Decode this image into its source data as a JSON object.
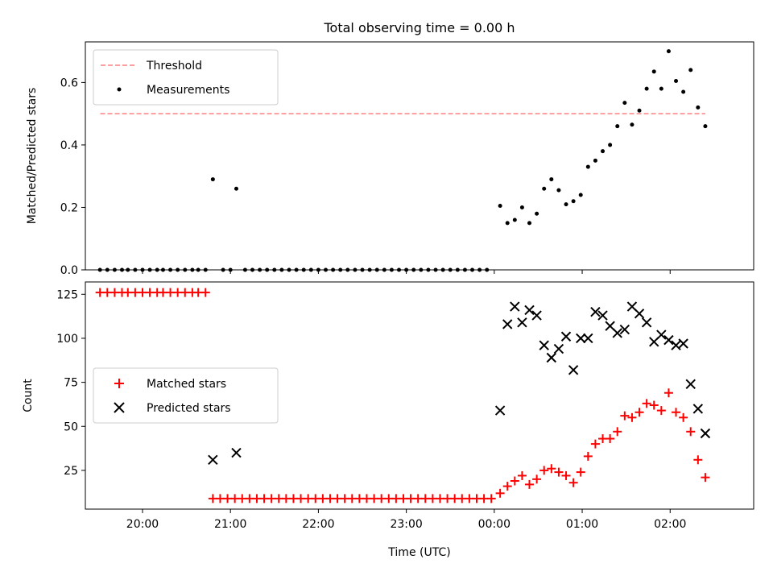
{
  "figure": {
    "title": "Total observing time = 0.00 h",
    "xlabel": "Time (UTC)"
  },
  "chart_data": [
    {
      "type": "scatter",
      "ylabel": "Matched/Predicted stars",
      "ylim": [
        0,
        0.73
      ],
      "yticks": [
        0.0,
        0.2,
        0.4,
        0.6
      ],
      "ytick_labels": [
        "0.0",
        "0.2",
        "0.4",
        "0.6"
      ],
      "xlim_hours": [
        19.35,
        26.95
      ],
      "legend_position": "upper-left",
      "threshold": {
        "name": "Threshold",
        "value": 0.5,
        "x_start": 19.52,
        "x_end": 26.4,
        "color": "#ff7f7f"
      },
      "series": [
        {
          "name": "Measurements",
          "marker": "dot",
          "color": "#000000",
          "points": [
            [
              "19:31",
              0
            ],
            [
              "19:36",
              0
            ],
            [
              "19:41",
              0
            ],
            [
              "19:46",
              0
            ],
            [
              "19:50",
              0
            ],
            [
              "19:55",
              0
            ],
            [
              "20:00",
              0
            ],
            [
              "20:05",
              0
            ],
            [
              "20:10",
              0
            ],
            [
              "20:14",
              0
            ],
            [
              "20:19",
              0
            ],
            [
              "20:24",
              0
            ],
            [
              "20:29",
              0
            ],
            [
              "20:34",
              0
            ],
            [
              "20:38",
              0
            ],
            [
              "20:43",
              0
            ],
            [
              "20:48",
              0.29
            ],
            [
              "20:55",
              0
            ],
            [
              "21:00",
              0
            ],
            [
              "21:04",
              0.26
            ],
            [
              "21:10",
              0
            ],
            [
              "21:15",
              0
            ],
            [
              "21:20",
              0
            ],
            [
              "21:25",
              0
            ],
            [
              "21:30",
              0
            ],
            [
              "21:35",
              0
            ],
            [
              "21:40",
              0
            ],
            [
              "21:45",
              0
            ],
            [
              "21:50",
              0
            ],
            [
              "21:55",
              0
            ],
            [
              "22:00",
              0
            ],
            [
              "22:05",
              0
            ],
            [
              "22:10",
              0
            ],
            [
              "22:15",
              0
            ],
            [
              "22:20",
              0
            ],
            [
              "22:25",
              0
            ],
            [
              "22:30",
              0
            ],
            [
              "22:35",
              0
            ],
            [
              "22:40",
              0
            ],
            [
              "22:45",
              0
            ],
            [
              "22:50",
              0
            ],
            [
              "22:55",
              0
            ],
            [
              "23:00",
              0
            ],
            [
              "23:05",
              0
            ],
            [
              "23:10",
              0
            ],
            [
              "23:15",
              0
            ],
            [
              "23:20",
              0
            ],
            [
              "23:25",
              0
            ],
            [
              "23:30",
              0
            ],
            [
              "23:35",
              0
            ],
            [
              "23:40",
              0
            ],
            [
              "23:45",
              0
            ],
            [
              "23:50",
              0
            ],
            [
              "23:55",
              0
            ],
            [
              "00:04",
              0.205
            ],
            [
              "00:09",
              0.15
            ],
            [
              "00:14",
              0.16
            ],
            [
              "00:19",
              0.2
            ],
            [
              "00:24",
              0.15
            ],
            [
              "00:29",
              0.18
            ],
            [
              "00:34",
              0.26
            ],
            [
              "00:39",
              0.29
            ],
            [
              "00:44",
              0.255
            ],
            [
              "00:49",
              0.21
            ],
            [
              "00:54",
              0.22
            ],
            [
              "00:59",
              0.24
            ],
            [
              "01:04",
              0.33
            ],
            [
              "01:09",
              0.35
            ],
            [
              "01:14",
              0.38
            ],
            [
              "01:19",
              0.4
            ],
            [
              "01:24",
              0.46
            ],
            [
              "01:29",
              0.535
            ],
            [
              "01:34",
              0.465
            ],
            [
              "01:39",
              0.51
            ],
            [
              "01:44",
              0.58
            ],
            [
              "01:49",
              0.635
            ],
            [
              "01:54",
              0.58
            ],
            [
              "01:59",
              0.7
            ],
            [
              "02:04",
              0.605
            ],
            [
              "02:09",
              0.57
            ],
            [
              "02:14",
              0.64
            ],
            [
              "02:19",
              0.52
            ],
            [
              "02:24",
              0.46
            ]
          ]
        }
      ]
    },
    {
      "type": "scatter",
      "ylabel": "Count",
      "ylim": [
        3,
        132
      ],
      "yticks": [
        25,
        50,
        75,
        100,
        125
      ],
      "ytick_labels": [
        "25",
        "50",
        "75",
        "100",
        "125"
      ],
      "xlim_hours": [
        19.35,
        26.95
      ],
      "xticks_hours": [
        20,
        21,
        22,
        23,
        24,
        25,
        26
      ],
      "xtick_labels": [
        "20:00",
        "21:00",
        "22:00",
        "23:00",
        "00:00",
        "01:00",
        "02:00"
      ],
      "legend_position": "center-left",
      "series": [
        {
          "name": "Matched stars",
          "marker": "plus",
          "color": "#ff0000",
          "points": [
            [
              "19:31",
              126
            ],
            [
              "19:36",
              126
            ],
            [
              "19:41",
              126
            ],
            [
              "19:46",
              126
            ],
            [
              "19:50",
              126
            ],
            [
              "19:55",
              126
            ],
            [
              "20:00",
              126
            ],
            [
              "20:05",
              126
            ],
            [
              "20:10",
              126
            ],
            [
              "20:14",
              126
            ],
            [
              "20:19",
              126
            ],
            [
              "20:24",
              126
            ],
            [
              "20:29",
              126
            ],
            [
              "20:34",
              126
            ],
            [
              "20:38",
              126
            ],
            [
              "20:43",
              126
            ],
            [
              "20:48",
              9
            ],
            [
              "20:53",
              9
            ],
            [
              "20:58",
              9
            ],
            [
              "21:03",
              9
            ],
            [
              "21:08",
              9
            ],
            [
              "21:13",
              9
            ],
            [
              "21:18",
              9
            ],
            [
              "21:23",
              9
            ],
            [
              "21:28",
              9
            ],
            [
              "21:33",
              9
            ],
            [
              "21:38",
              9
            ],
            [
              "21:43",
              9
            ],
            [
              "21:48",
              9
            ],
            [
              "21:53",
              9
            ],
            [
              "21:58",
              9
            ],
            [
              "22:03",
              9
            ],
            [
              "22:08",
              9
            ],
            [
              "22:13",
              9
            ],
            [
              "22:18",
              9
            ],
            [
              "22:23",
              9
            ],
            [
              "22:28",
              9
            ],
            [
              "22:33",
              9
            ],
            [
              "22:38",
              9
            ],
            [
              "22:43",
              9
            ],
            [
              "22:48",
              9
            ],
            [
              "22:53",
              9
            ],
            [
              "22:58",
              9
            ],
            [
              "23:03",
              9
            ],
            [
              "23:08",
              9
            ],
            [
              "23:13",
              9
            ],
            [
              "23:18",
              9
            ],
            [
              "23:23",
              9
            ],
            [
              "23:28",
              9
            ],
            [
              "23:33",
              9
            ],
            [
              "23:38",
              9
            ],
            [
              "23:43",
              9
            ],
            [
              "23:48",
              9
            ],
            [
              "23:53",
              9
            ],
            [
              "23:58",
              9
            ],
            [
              "00:04",
              12
            ],
            [
              "00:09",
              16
            ],
            [
              "00:14",
              19
            ],
            [
              "00:19",
              22
            ],
            [
              "00:24",
              17
            ],
            [
              "00:29",
              20
            ],
            [
              "00:34",
              25
            ],
            [
              "00:39",
              26
            ],
            [
              "00:44",
              24
            ],
            [
              "00:49",
              22
            ],
            [
              "00:54",
              18
            ],
            [
              "00:59",
              24
            ],
            [
              "01:04",
              33
            ],
            [
              "01:09",
              40
            ],
            [
              "01:14",
              43
            ],
            [
              "01:19",
              43
            ],
            [
              "01:24",
              47
            ],
            [
              "01:29",
              56
            ],
            [
              "01:34",
              55
            ],
            [
              "01:39",
              58
            ],
            [
              "01:44",
              63
            ],
            [
              "01:49",
              62
            ],
            [
              "01:54",
              59
            ],
            [
              "01:59",
              69
            ],
            [
              "02:04",
              58
            ],
            [
              "02:09",
              55
            ],
            [
              "02:14",
              47
            ],
            [
              "02:19",
              31
            ],
            [
              "02:24",
              21
            ]
          ]
        },
        {
          "name": "Predicted stars",
          "marker": "x",
          "color": "#000000",
          "points": [
            [
              "20:48",
              31
            ],
            [
              "21:04",
              35
            ],
            [
              "00:04",
              59
            ],
            [
              "00:09",
              108
            ],
            [
              "00:14",
              118
            ],
            [
              "00:19",
              109
            ],
            [
              "00:24",
              116
            ],
            [
              "00:29",
              113
            ],
            [
              "00:34",
              96
            ],
            [
              "00:39",
              89
            ],
            [
              "00:44",
              94
            ],
            [
              "00:49",
              101
            ],
            [
              "00:54",
              82
            ],
            [
              "00:59",
              100
            ],
            [
              "01:04",
              100
            ],
            [
              "01:09",
              115
            ],
            [
              "01:14",
              113
            ],
            [
              "01:19",
              107
            ],
            [
              "01:24",
              103
            ],
            [
              "01:29",
              105
            ],
            [
              "01:34",
              118
            ],
            [
              "01:39",
              114
            ],
            [
              "01:44",
              109
            ],
            [
              "01:49",
              98
            ],
            [
              "01:54",
              102
            ],
            [
              "01:59",
              99
            ],
            [
              "02:04",
              96
            ],
            [
              "02:09",
              97
            ],
            [
              "02:14",
              74
            ],
            [
              "02:19",
              60
            ],
            [
              "02:24",
              46
            ]
          ]
        }
      ]
    }
  ]
}
